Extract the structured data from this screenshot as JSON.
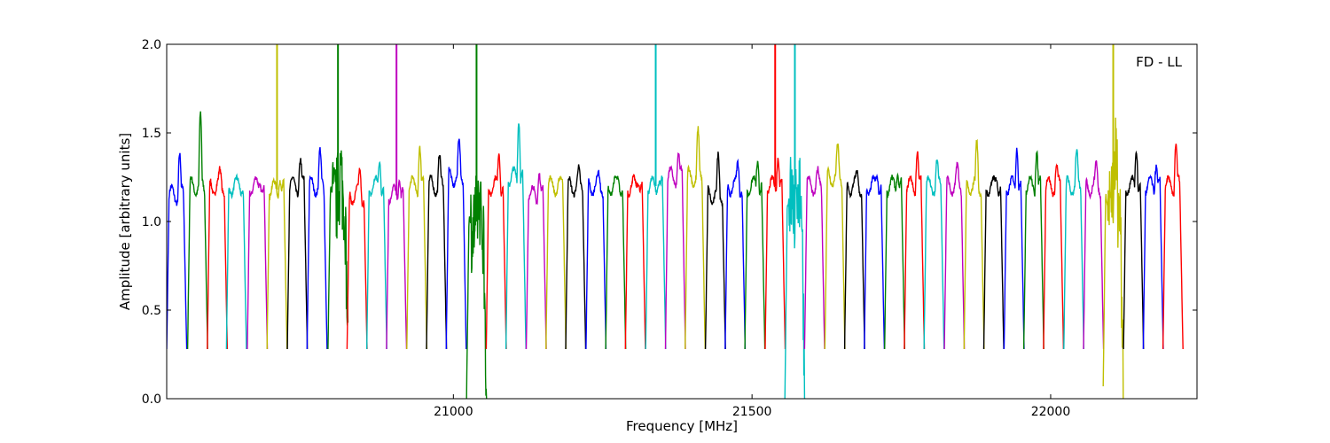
{
  "chart_data": {
    "type": "line",
    "title": "",
    "annotation": "FD - LL",
    "xlabel": "Frequency [MHz]",
    "ylabel": "Amplitude [arbitrary units]",
    "xlim": [
      20520,
      22245
    ],
    "ylim": [
      0.0,
      2.0
    ],
    "xticks": [
      21000,
      21500,
      22000
    ],
    "yticks": [
      0.0,
      0.5,
      1.0,
      1.5,
      2.0
    ],
    "ytick_labels": [
      "0.0",
      "0.5",
      "1.0",
      "1.5",
      "2.0"
    ],
    "grid": false,
    "legend": "none",
    "channel_width_mhz": 33.5,
    "colors": {
      "blue": "#0000ff",
      "green": "#008000",
      "red": "#ff0000",
      "cyan": "#00bfbf",
      "magenta": "#bf00bf",
      "olive": "#bfbf00",
      "black": "#000000",
      "grey": "#bfbfbf",
      "frame": "#000000"
    },
    "series": [
      {
        "x": 20520,
        "color": "blue",
        "level": 1.15,
        "peak": 1.37
      },
      {
        "x": 20555,
        "color": "green",
        "level": 1.2,
        "peak": 1.57
      },
      {
        "x": 20588,
        "color": "red",
        "level": 1.2,
        "peak": 1.26
      },
      {
        "x": 20620,
        "color": "cyan",
        "level": 1.2,
        "peak": 1.21
      },
      {
        "x": 20655,
        "color": "magenta",
        "level": 1.2,
        "peak": 1.24
      },
      {
        "x": 20688,
        "color": "olive",
        "level": 1.18,
        "peak": 1.26,
        "spike": 2.0
      },
      {
        "x": 20722,
        "color": "black",
        "level": 1.2,
        "peak": 1.35
      },
      {
        "x": 20755,
        "color": "blue",
        "level": 1.2,
        "peak": 1.37
      },
      {
        "x": 20790,
        "color": "green",
        "level": 1.15,
        "peak": 1.22,
        "spike": 2.0,
        "noisy": true
      },
      {
        "x": 20822,
        "color": "red",
        "level": 1.15,
        "peak": 1.28
      },
      {
        "x": 20855,
        "color": "cyan",
        "level": 1.2,
        "peak": 1.37
      },
      {
        "x": 20888,
        "color": "magenta",
        "level": 1.15,
        "peak": 1.27,
        "spike": 2.0
      },
      {
        "x": 20922,
        "color": "olive",
        "level": 1.2,
        "peak": 1.43
      },
      {
        "x": 20955,
        "color": "black",
        "level": 1.2,
        "peak": 1.35
      },
      {
        "x": 20988,
        "color": "blue",
        "level": 1.25,
        "peak": 1.42
      },
      {
        "x": 21022,
        "color": "green",
        "level": 1.0,
        "peak": 1.1,
        "spike": 2.0,
        "noisy": true,
        "min": 0.0
      },
      {
        "x": 21055,
        "color": "red",
        "level": 1.2,
        "peak": 1.41
      },
      {
        "x": 21088,
        "color": "cyan",
        "level": 1.25,
        "peak": 1.61
      },
      {
        "x": 21122,
        "color": "magenta",
        "level": 1.15,
        "peak": 1.29
      },
      {
        "x": 21155,
        "color": "olive",
        "level": 1.2,
        "peak": 1.21
      },
      {
        "x": 21188,
        "color": "black",
        "level": 1.2,
        "peak": 1.26
      },
      {
        "x": 21222,
        "color": "blue",
        "level": 1.2,
        "peak": 1.24
      },
      {
        "x": 21255,
        "color": "green",
        "level": 1.2,
        "peak": 1.24
      },
      {
        "x": 21288,
        "color": "red",
        "level": 1.2,
        "peak": 1.26
      },
      {
        "x": 21322,
        "color": "cyan",
        "level": 1.2,
        "peak": 1.25,
        "spike": 2.0
      },
      {
        "x": 21355,
        "color": "magenta",
        "level": 1.25,
        "peak": 1.37
      },
      {
        "x": 21388,
        "color": "olive",
        "level": 1.25,
        "peak": 1.48
      },
      {
        "x": 21422,
        "color": "black",
        "level": 1.15,
        "peak": 1.34
      },
      {
        "x": 21455,
        "color": "blue",
        "level": 1.2,
        "peak": 1.33
      },
      {
        "x": 21488,
        "color": "green",
        "level": 1.2,
        "peak": 1.37
      },
      {
        "x": 21522,
        "color": "red",
        "level": 1.2,
        "peak": 1.4,
        "spike": 2.0
      },
      {
        "x": 21555,
        "color": "cyan",
        "level": 1.1,
        "peak": 1.21,
        "spike": 2.0,
        "noisy": true,
        "min": 0.0
      },
      {
        "x": 21588,
        "color": "magenta",
        "level": 1.2,
        "peak": 1.26
      },
      {
        "x": 21622,
        "color": "olive",
        "level": 1.25,
        "peak": 1.39
      },
      {
        "x": 21655,
        "color": "black",
        "level": 1.2,
        "peak": 1.26
      },
      {
        "x": 21688,
        "color": "blue",
        "level": 1.2,
        "peak": 1.28
      },
      {
        "x": 21722,
        "color": "green",
        "level": 1.2,
        "peak": 1.3
      },
      {
        "x": 21755,
        "color": "red",
        "level": 1.2,
        "peak": 1.41
      },
      {
        "x": 21788,
        "color": "cyan",
        "level": 1.2,
        "peak": 1.33
      },
      {
        "x": 21822,
        "color": "magenta",
        "level": 1.2,
        "peak": 1.28
      },
      {
        "x": 21855,
        "color": "olive",
        "level": 1.2,
        "peak": 1.43
      },
      {
        "x": 21888,
        "color": "black",
        "level": 1.2,
        "peak": 1.25
      },
      {
        "x": 21922,
        "color": "blue",
        "level": 1.2,
        "peak": 1.46
      },
      {
        "x": 21955,
        "color": "green",
        "level": 1.2,
        "peak": 1.42
      },
      {
        "x": 21988,
        "color": "red",
        "level": 1.2,
        "peak": 1.3
      },
      {
        "x": 22022,
        "color": "cyan",
        "level": 1.2,
        "peak": 1.36
      },
      {
        "x": 22055,
        "color": "magenta",
        "level": 1.2,
        "peak": 1.3
      },
      {
        "x": 22088,
        "color": "olive",
        "level": 1.15,
        "peak": 1.37,
        "spike": 2.0,
        "noisy": true,
        "min": 0.07
      },
      {
        "x": 22122,
        "color": "black",
        "level": 1.2,
        "peak": 1.44
      },
      {
        "x": 22155,
        "color": "blue",
        "level": 1.2,
        "peak": 1.35
      },
      {
        "x": 22188,
        "color": "red",
        "level": 1.2,
        "peak": 1.44
      }
    ]
  }
}
